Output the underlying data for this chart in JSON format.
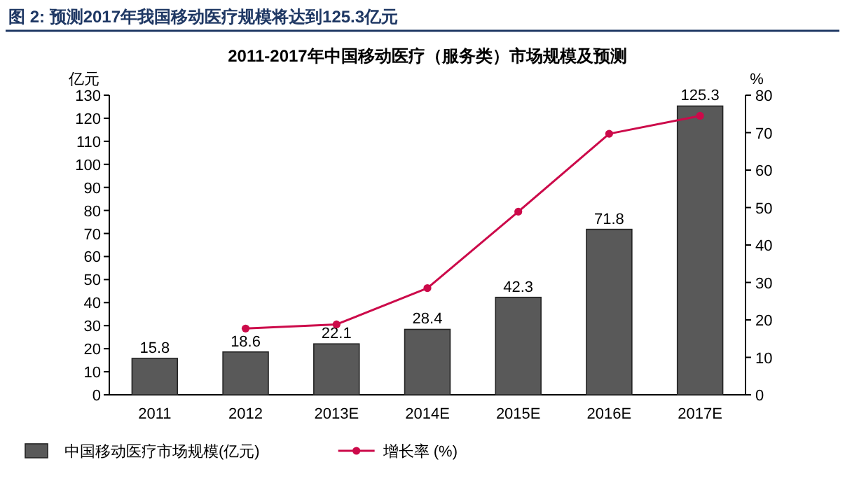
{
  "chart_data": {
    "type": "bar",
    "title": "图 2: 预测2017年我国移动医疗规模将达到125.3亿元",
    "subtitle": "2011-2017年中国移动医疗（服务类）市场规模及预测",
    "ylabel": "亿元",
    "y2label": "%",
    "categories": [
      "2011",
      "2012",
      "2013E",
      "2014E",
      "2015E",
      "2016E",
      "2017E"
    ],
    "series": [
      {
        "name": "中国移动医疗市场规模(亿元)",
        "color": "#595959",
        "values": [
          15.8,
          18.6,
          22.1,
          28.4,
          42.3,
          71.8,
          125.3
        ],
        "value_labels": [
          "15.8",
          "18.6",
          "22.1",
          "28.4",
          "42.3",
          "71.8",
          "125.3"
        ]
      },
      {
        "name": "增长率 (%)",
        "type": "line",
        "axis": "y2",
        "color": "#cc0a4a",
        "marker": "circle",
        "values": [
          null,
          17.7,
          18.8,
          28.5,
          48.9,
          69.7,
          74.5
        ]
      }
    ],
    "ylim": [
      0,
      130
    ],
    "yticks": [
      0,
      10,
      20,
      30,
      40,
      50,
      60,
      70,
      80,
      90,
      100,
      110,
      120,
      130
    ],
    "y2lim": [
      0,
      80
    ],
    "y2ticks": [
      0,
      10,
      20,
      30,
      40,
      50,
      60,
      70,
      80
    ],
    "grid": false,
    "legend": "bottom left"
  }
}
